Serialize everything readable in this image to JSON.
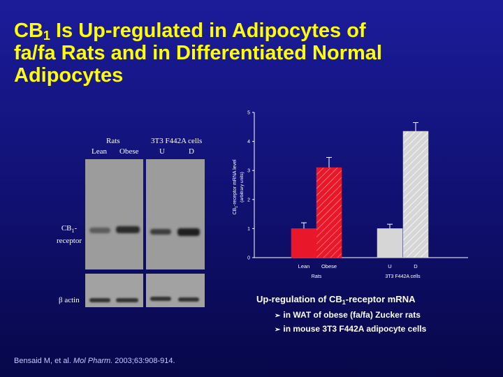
{
  "title": {
    "part1": "CB",
    "sub": "1",
    "part2": " Is Up-regulated in Adipocytes of",
    "line2": "fa/fa Rats and in Differentiated Normal",
    "line3": "Adipocytes"
  },
  "blot": {
    "group_rats": "Rats",
    "group_cells": "3T3 F442A cells",
    "lanes": [
      "Lean",
      "Obese",
      "U",
      "D"
    ],
    "cb1_label_a": "CB",
    "cb1_label_sub": "1",
    "cb1_label_b": "-",
    "cb1_label_c": "receptor",
    "actin_label": "β actin"
  },
  "chart_data": {
    "type": "bar",
    "categories": [
      "Lean",
      "Obese",
      "U",
      "D"
    ],
    "groups": [
      "Rats",
      "3T3 F442A cells"
    ],
    "values": [
      1.0,
      3.1,
      1.0,
      4.35
    ],
    "errors": [
      0.2,
      0.35,
      0.15,
      0.3
    ],
    "ylim": [
      0,
      5
    ],
    "yticks": [
      "0",
      "1",
      "2",
      "3",
      "4",
      "5"
    ],
    "ylabel_a": "CB",
    "ylabel_sub": "1",
    "ylabel_b": "-receptor mRNA level",
    "ylabel_units": "(arbitrary units)",
    "colors": [
      "#e8182a",
      "#e8182a",
      "#d6d6d6",
      "#d6d6d6"
    ],
    "hatched": [
      false,
      true,
      false,
      true
    ]
  },
  "caption": {
    "heading_a": "Up-regulation of CB",
    "heading_sub": "1",
    "heading_b": "-receptor mRNA",
    "bullets": [
      "in WAT of obese (fa/fa) Zucker rats",
      "in mouse 3T3 F442A adipocyte cells"
    ],
    "bullet_glyph": "➢"
  },
  "citation": {
    "authors": "Bensaid M, et al. ",
    "journal": "Mol Pharm.",
    "details": " 2003;63:908-914."
  }
}
